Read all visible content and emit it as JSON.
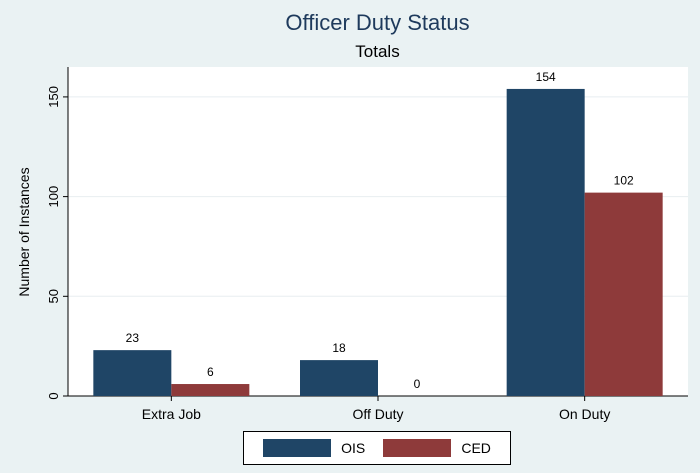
{
  "chart_data": {
    "type": "bar",
    "title": "Officer Duty Status",
    "subtitle": "Totals",
    "ylabel": "Number of Instances",
    "xlabel": "",
    "categories": [
      "Extra Job",
      "Off Duty",
      "On Duty"
    ],
    "series": [
      {
        "name": "OIS",
        "color": "#1f4566",
        "values": [
          23,
          18,
          154
        ]
      },
      {
        "name": "CED",
        "color": "#8e3a3a",
        "values": [
          6,
          0,
          102
        ]
      }
    ],
    "yticks": [
      0,
      50,
      100,
      150
    ],
    "ylim": [
      0,
      165
    ],
    "grid": true,
    "legend_position": "bottom"
  }
}
